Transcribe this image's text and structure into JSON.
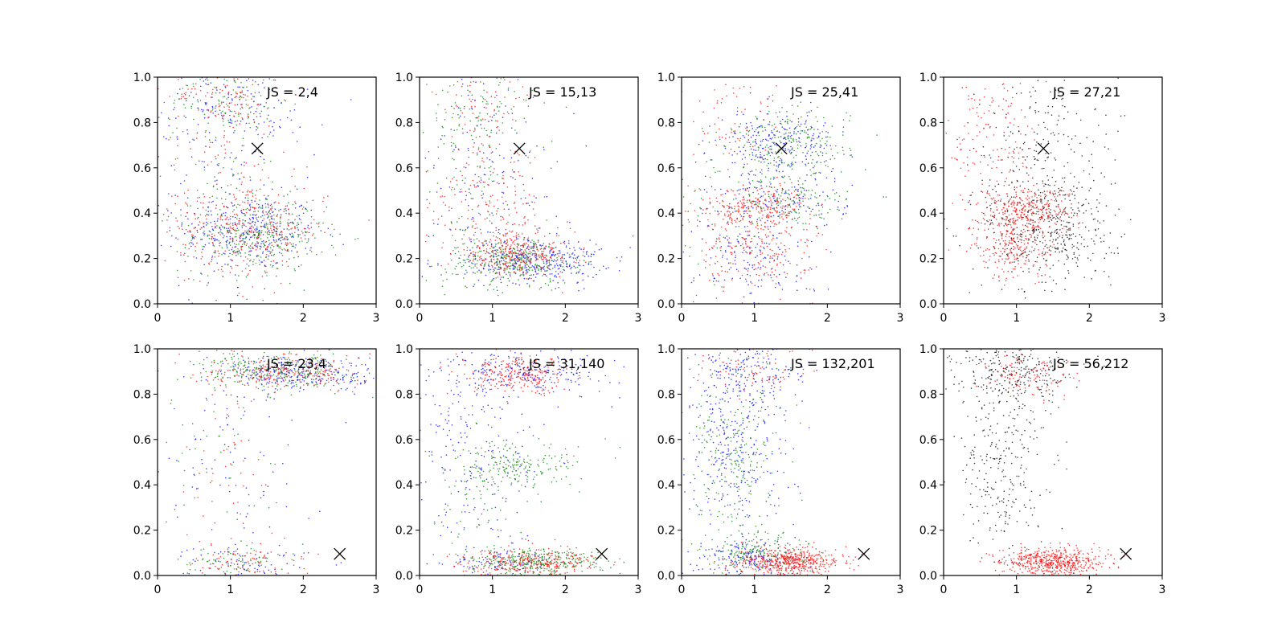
{
  "chart_data": [
    {
      "type": "scatter",
      "panel": "row 1, col 1",
      "annotation": "JS = 2,4",
      "xlim": [
        0,
        3
      ],
      "ylim": [
        0,
        1
      ],
      "xticks": [
        "0",
        "1",
        "2",
        "3"
      ],
      "yticks": [
        "0.0",
        "0.2",
        "0.4",
        "0.6",
        "0.8",
        "1.0"
      ],
      "marker": {
        "x": 1.37,
        "y": 0.685,
        "symbol": "x"
      },
      "series": [
        {
          "color": "#0000ff",
          "clusters": [
            {
              "cx": 1.3,
              "cy": 0.32,
              "sx": 0.45,
              "sy": 0.08,
              "n": 300
            },
            {
              "cx": 1.0,
              "cy": 0.88,
              "sx": 0.45,
              "sy": 0.08,
              "n": 110
            },
            {
              "cx": 1.0,
              "cy": 0.5,
              "sx": 0.55,
              "sy": 0.3,
              "n": 160
            }
          ]
        },
        {
          "color": "#008000",
          "clusters": [
            {
              "cx": 1.4,
              "cy": 0.3,
              "sx": 0.45,
              "sy": 0.08,
              "n": 300
            },
            {
              "cx": 1.0,
              "cy": 0.9,
              "sx": 0.4,
              "sy": 0.08,
              "n": 90
            },
            {
              "cx": 0.9,
              "cy": 0.5,
              "sx": 0.5,
              "sy": 0.3,
              "n": 130
            }
          ]
        },
        {
          "color": "#ff0000",
          "clusters": [
            {
              "cx": 1.3,
              "cy": 0.33,
              "sx": 0.5,
              "sy": 0.09,
              "n": 280
            },
            {
              "cx": 0.9,
              "cy": 0.9,
              "sx": 0.4,
              "sy": 0.08,
              "n": 100
            },
            {
              "cx": 0.9,
              "cy": 0.5,
              "sx": 0.5,
              "sy": 0.3,
              "n": 130
            }
          ]
        }
      ]
    },
    {
      "type": "scatter",
      "panel": "row 1, col 2",
      "annotation": "JS = 15,13",
      "xlim": [
        0,
        3
      ],
      "ylim": [
        0,
        1
      ],
      "xticks": [
        "0",
        "1",
        "2",
        "3"
      ],
      "yticks": [
        "0.0",
        "0.2",
        "0.4",
        "0.6",
        "0.8",
        "1.0"
      ],
      "marker": {
        "x": 1.37,
        "y": 0.685,
        "symbol": "x"
      },
      "series": [
        {
          "color": "#0000ff",
          "clusters": [
            {
              "cx": 1.6,
              "cy": 0.19,
              "sx": 0.45,
              "sy": 0.05,
              "n": 340
            },
            {
              "cx": 0.9,
              "cy": 0.55,
              "sx": 0.5,
              "sy": 0.25,
              "n": 160
            }
          ]
        },
        {
          "color": "#008000",
          "clusters": [
            {
              "cx": 1.3,
              "cy": 0.19,
              "sx": 0.45,
              "sy": 0.05,
              "n": 320
            },
            {
              "cx": 0.8,
              "cy": 0.85,
              "sx": 0.4,
              "sy": 0.1,
              "n": 110
            },
            {
              "cx": 0.8,
              "cy": 0.45,
              "sx": 0.45,
              "sy": 0.2,
              "n": 110
            }
          ]
        },
        {
          "color": "#ff0000",
          "clusters": [
            {
              "cx": 1.3,
              "cy": 0.22,
              "sx": 0.4,
              "sy": 0.05,
              "n": 300
            },
            {
              "cx": 0.9,
              "cy": 0.45,
              "sx": 0.45,
              "sy": 0.12,
              "n": 150
            },
            {
              "cx": 0.8,
              "cy": 0.9,
              "sx": 0.4,
              "sy": 0.08,
              "n": 70
            }
          ]
        }
      ]
    },
    {
      "type": "scatter",
      "panel": "row 1, col 3",
      "annotation": "JS = 25,41",
      "xlim": [
        0,
        3
      ],
      "ylim": [
        0,
        1
      ],
      "xticks": [
        "0",
        "1",
        "2",
        "3"
      ],
      "yticks": [
        "0.0",
        "0.2",
        "0.4",
        "0.6",
        "0.8",
        "1.0"
      ],
      "marker": {
        "x": 1.37,
        "y": 0.685,
        "symbol": "x"
      },
      "series": [
        {
          "color": "#0000ff",
          "clusters": [
            {
              "cx": 1.3,
              "cy": 0.69,
              "sx": 0.4,
              "sy": 0.08,
              "n": 260
            },
            {
              "cx": 1.0,
              "cy": 0.2,
              "sx": 0.4,
              "sy": 0.12,
              "n": 170
            },
            {
              "cx": 1.4,
              "cy": 0.45,
              "sx": 0.45,
              "sy": 0.06,
              "n": 110
            }
          ]
        },
        {
          "color": "#008000",
          "clusters": [
            {
              "cx": 1.5,
              "cy": 0.7,
              "sx": 0.4,
              "sy": 0.08,
              "n": 240
            },
            {
              "cx": 1.5,
              "cy": 0.45,
              "sx": 0.4,
              "sy": 0.06,
              "n": 140
            },
            {
              "cx": 0.4,
              "cy": 0.3,
              "sx": 0.3,
              "sy": 0.25,
              "n": 60
            }
          ]
        },
        {
          "color": "#ff0000",
          "clusters": [
            {
              "cx": 1.0,
              "cy": 0.43,
              "sx": 0.4,
              "sy": 0.05,
              "n": 280
            },
            {
              "cx": 1.0,
              "cy": 0.22,
              "sx": 0.4,
              "sy": 0.08,
              "n": 170
            },
            {
              "cx": 0.7,
              "cy": 0.8,
              "sx": 0.35,
              "sy": 0.12,
              "n": 70
            }
          ]
        }
      ]
    },
    {
      "type": "scatter",
      "panel": "row 1, col 4",
      "annotation": "JS = 27,21",
      "xlim": [
        0,
        3
      ],
      "ylim": [
        0,
        1
      ],
      "xticks": [
        "0",
        "1",
        "2",
        "3"
      ],
      "yticks": [
        "0.0",
        "0.2",
        "0.4",
        "0.6",
        "0.8",
        "1.0"
      ],
      "marker": {
        "x": 1.37,
        "y": 0.685,
        "symbol": "x"
      },
      "series": [
        {
          "color": "#000000",
          "clusters": [
            {
              "cx": 1.45,
              "cy": 0.33,
              "sx": 0.45,
              "sy": 0.14,
              "n": 450
            },
            {
              "cx": 1.3,
              "cy": 0.72,
              "sx": 0.4,
              "sy": 0.15,
              "n": 170
            }
          ]
        },
        {
          "color": "#ff0000",
          "clusters": [
            {
              "cx": 1.1,
              "cy": 0.42,
              "sx": 0.35,
              "sy": 0.05,
              "n": 320
            },
            {
              "cx": 0.95,
              "cy": 0.25,
              "sx": 0.3,
              "sy": 0.07,
              "n": 230
            },
            {
              "cx": 0.7,
              "cy": 0.75,
              "sx": 0.3,
              "sy": 0.15,
              "n": 130
            }
          ]
        }
      ]
    },
    {
      "type": "scatter",
      "panel": "row 2, col 1",
      "annotation": "JS = 23,4",
      "xlim": [
        0,
        3
      ],
      "ylim": [
        0,
        1
      ],
      "xticks": [
        "0",
        "1",
        "2",
        "3"
      ],
      "yticks": [
        "0.0",
        "0.2",
        "0.4",
        "0.6",
        "0.8",
        "1.0"
      ],
      "marker": {
        "x": 2.5,
        "y": 0.095,
        "symbol": "x"
      },
      "series": [
        {
          "color": "#0000ff",
          "clusters": [
            {
              "cx": 2.0,
              "cy": 0.89,
              "sx": 0.55,
              "sy": 0.04,
              "n": 270
            },
            {
              "cx": 1.0,
              "cy": 0.5,
              "sx": 0.5,
              "sy": 0.25,
              "n": 90
            },
            {
              "cx": 1.2,
              "cy": 0.06,
              "sx": 0.4,
              "sy": 0.04,
              "n": 70
            }
          ]
        },
        {
          "color": "#008000",
          "clusters": [
            {
              "cx": 1.6,
              "cy": 0.9,
              "sx": 0.5,
              "sy": 0.04,
              "n": 290
            },
            {
              "cx": 1.0,
              "cy": 0.06,
              "sx": 0.35,
              "sy": 0.04,
              "n": 80
            },
            {
              "cx": 0.8,
              "cy": 0.5,
              "sx": 0.4,
              "sy": 0.2,
              "n": 40
            }
          ]
        },
        {
          "color": "#ff0000",
          "clusters": [
            {
              "cx": 1.8,
              "cy": 0.9,
              "sx": 0.55,
              "sy": 0.04,
              "n": 240
            },
            {
              "cx": 1.2,
              "cy": 0.06,
              "sx": 0.4,
              "sy": 0.04,
              "n": 90
            },
            {
              "cx": 0.8,
              "cy": 0.5,
              "sx": 0.4,
              "sy": 0.2,
              "n": 40
            }
          ]
        }
      ]
    },
    {
      "type": "scatter",
      "panel": "row 2, col 2",
      "annotation": "JS = 31,140",
      "xlim": [
        0,
        3
      ],
      "ylim": [
        0,
        1
      ],
      "xticks": [
        "0",
        "1",
        "2",
        "3"
      ],
      "yticks": [
        "0.0",
        "0.2",
        "0.4",
        "0.6",
        "0.8",
        "1.0"
      ],
      "marker": {
        "x": 2.5,
        "y": 0.095,
        "symbol": "x"
      },
      "series": [
        {
          "color": "#0000ff",
          "clusters": [
            {
              "cx": 1.5,
              "cy": 0.9,
              "sx": 0.6,
              "sy": 0.05,
              "n": 220
            },
            {
              "cx": 0.8,
              "cy": 0.55,
              "sx": 0.45,
              "sy": 0.25,
              "n": 230
            },
            {
              "cx": 1.2,
              "cy": 0.05,
              "sx": 0.4,
              "sy": 0.03,
              "n": 80
            }
          ]
        },
        {
          "color": "#008000",
          "clusters": [
            {
              "cx": 1.6,
              "cy": 0.06,
              "sx": 0.45,
              "sy": 0.03,
              "n": 330
            },
            {
              "cx": 1.3,
              "cy": 0.48,
              "sx": 0.45,
              "sy": 0.05,
              "n": 200
            },
            {
              "cx": 0.8,
              "cy": 0.25,
              "sx": 0.4,
              "sy": 0.15,
              "n": 60
            }
          ]
        },
        {
          "color": "#ff0000",
          "clusters": [
            {
              "cx": 1.4,
              "cy": 0.88,
              "sx": 0.35,
              "sy": 0.04,
              "n": 250
            },
            {
              "cx": 1.5,
              "cy": 0.06,
              "sx": 0.45,
              "sy": 0.03,
              "n": 300
            }
          ]
        }
      ]
    },
    {
      "type": "scatter",
      "panel": "row 2, col 3",
      "annotation": "JS = 132,201",
      "xlim": [
        0,
        3
      ],
      "ylim": [
        0,
        1
      ],
      "xticks": [
        "0",
        "1",
        "2",
        "3"
      ],
      "yticks": [
        "0.0",
        "0.2",
        "0.4",
        "0.6",
        "0.8",
        "1.0"
      ],
      "marker": {
        "x": 2.5,
        "y": 0.095,
        "symbol": "x"
      },
      "series": [
        {
          "color": "#0000ff",
          "clusters": [
            {
              "cx": 0.75,
              "cy": 0.6,
              "sx": 0.35,
              "sy": 0.25,
              "n": 360
            },
            {
              "cx": 1.0,
              "cy": 0.9,
              "sx": 0.4,
              "sy": 0.07,
              "n": 140
            },
            {
              "cx": 0.9,
              "cy": 0.08,
              "sx": 0.35,
              "sy": 0.04,
              "n": 150
            }
          ]
        },
        {
          "color": "#008000",
          "clusters": [
            {
              "cx": 0.75,
              "cy": 0.5,
              "sx": 0.3,
              "sy": 0.25,
              "n": 250
            },
            {
              "cx": 1.1,
              "cy": 0.1,
              "sx": 0.35,
              "sy": 0.04,
              "n": 180
            }
          ]
        },
        {
          "color": "#ff0000",
          "clusters": [
            {
              "cx": 1.5,
              "cy": 0.06,
              "sx": 0.35,
              "sy": 0.03,
              "n": 500
            },
            {
              "cx": 1.0,
              "cy": 0.9,
              "sx": 0.35,
              "sy": 0.06,
              "n": 90
            }
          ]
        }
      ]
    },
    {
      "type": "scatter",
      "panel": "row 2, col 4",
      "annotation": "JS = 56,212",
      "xlim": [
        0,
        3
      ],
      "ylim": [
        0,
        1
      ],
      "xticks": [
        "0",
        "1",
        "2",
        "3"
      ],
      "yticks": [
        "0.0",
        "0.2",
        "0.4",
        "0.6",
        "0.8",
        "1.0"
      ],
      "marker": {
        "x": 2.5,
        "y": 0.095,
        "symbol": "x"
      },
      "series": [
        {
          "color": "#000000",
          "clusters": [
            {
              "cx": 0.8,
              "cy": 0.55,
              "sx": 0.35,
              "sy": 0.25,
              "n": 330
            },
            {
              "cx": 1.0,
              "cy": 0.9,
              "sx": 0.4,
              "sy": 0.06,
              "n": 220
            }
          ]
        },
        {
          "color": "#ff0000",
          "clusters": [
            {
              "cx": 1.5,
              "cy": 0.06,
              "sx": 0.35,
              "sy": 0.03,
              "n": 560
            },
            {
              "cx": 1.2,
              "cy": 0.88,
              "sx": 0.3,
              "sy": 0.05,
              "n": 110
            }
          ]
        }
      ]
    }
  ]
}
